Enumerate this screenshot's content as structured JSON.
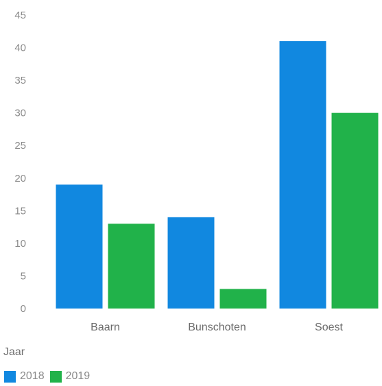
{
  "colors": {
    "series_2018": "#1188e0",
    "series_2019": "#21b24a"
  },
  "legend": {
    "title": "Jaar",
    "items": [
      {
        "label": "2018",
        "color": "#1188e0"
      },
      {
        "label": "2019",
        "color": "#21b24a"
      }
    ]
  },
  "chart_data": {
    "type": "bar",
    "title": "",
    "xlabel": "",
    "ylabel": "",
    "categories": [
      "Baarn",
      "Bunschoten",
      "Soest"
    ],
    "series": [
      {
        "name": "2018",
        "values": [
          19,
          14,
          41
        ]
      },
      {
        "name": "2019",
        "values": [
          13,
          3,
          30
        ]
      }
    ],
    "ylim": [
      0,
      45
    ],
    "yticks": [
      0,
      5,
      10,
      15,
      20,
      25,
      30,
      35,
      40,
      45
    ],
    "grid": false,
    "legend_position": "bottom-left"
  }
}
